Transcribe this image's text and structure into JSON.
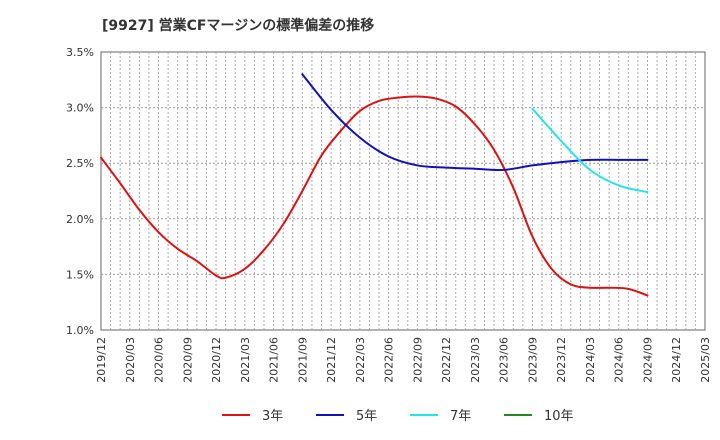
{
  "chart_data": {
    "type": "line",
    "title": "[9927]  営業CFマージンの標準偏差の推移",
    "xlabel": "",
    "ylabel": "",
    "ylim": [
      1.0,
      3.5
    ],
    "yticks": [
      "1.0%",
      "1.5%",
      "2.0%",
      "2.5%",
      "3.0%",
      "3.5%"
    ],
    "ytick_values": [
      1.0,
      1.5,
      2.0,
      2.5,
      3.0,
      3.5
    ],
    "categories": [
      "2019/12",
      "2020/03",
      "2020/06",
      "2020/09",
      "2020/12",
      "2021/03",
      "2021/06",
      "2021/09",
      "2021/12",
      "2022/03",
      "2022/06",
      "2022/09",
      "2022/12",
      "2023/03",
      "2023/06",
      "2023/09",
      "2023/12",
      "2024/03",
      "2024/06",
      "2024/09",
      "2024/12",
      "2025/03"
    ],
    "grid": true,
    "legend_position": "bottom",
    "series": [
      {
        "name": "3年",
        "color": "#dd1111",
        "x": [
          "2019/12",
          "2020/02",
          "2020/04",
          "2020/06",
          "2020/08",
          "2020/10",
          "2020/12",
          "2021/01",
          "2021/03",
          "2021/05",
          "2021/07",
          "2021/09",
          "2021/11",
          "2022/01",
          "2022/03",
          "2022/05",
          "2022/07",
          "2022/09",
          "2022/11",
          "2023/01",
          "2023/03",
          "2023/05",
          "2023/07",
          "2023/09",
          "2023/11",
          "2024/01",
          "2024/03",
          "2024/05",
          "2024/07",
          "2024/09"
        ],
        "y": [
          2.55,
          2.32,
          2.08,
          1.88,
          1.73,
          1.62,
          1.49,
          1.47,
          1.55,
          1.72,
          1.95,
          2.25,
          2.57,
          2.79,
          2.97,
          3.06,
          3.09,
          3.1,
          3.08,
          3.01,
          2.85,
          2.62,
          2.28,
          1.84,
          1.55,
          1.41,
          1.38,
          1.38,
          1.37,
          1.31
        ]
      },
      {
        "name": "5年",
        "color": "#1111bb",
        "x": [
          "2021/09",
          "2021/12",
          "2022/03",
          "2022/06",
          "2022/09",
          "2022/12",
          "2023/03",
          "2023/06",
          "2023/09",
          "2023/12",
          "2024/03",
          "2024/06",
          "2024/09"
        ],
        "y": [
          3.3,
          2.98,
          2.73,
          2.56,
          2.48,
          2.46,
          2.45,
          2.44,
          2.48,
          2.51,
          2.53,
          2.53,
          2.53
        ]
      },
      {
        "name": "7年",
        "color": "#22e5f0",
        "x": [
          "2023/09",
          "2023/12",
          "2024/03",
          "2024/06",
          "2024/09"
        ],
        "y": [
          2.99,
          2.7,
          2.44,
          2.3,
          2.24
        ]
      },
      {
        "name": "10年",
        "color": "#228822",
        "x": [],
        "y": []
      }
    ]
  }
}
